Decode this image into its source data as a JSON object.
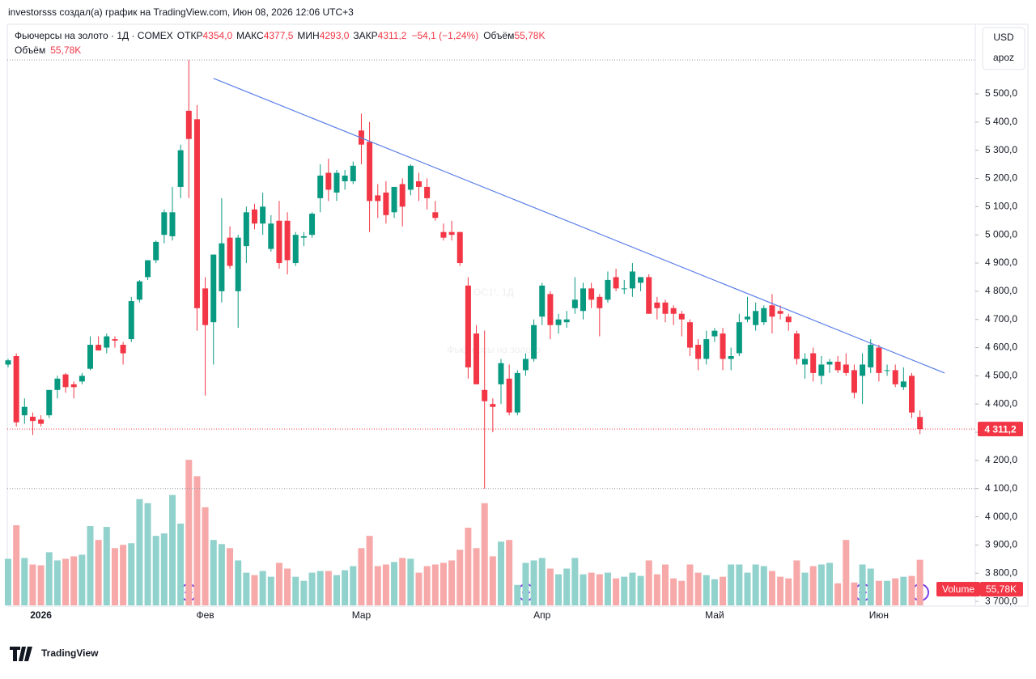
{
  "ui": {
    "credit": "investorsss создал(а) график на TradingView.com, Июн 08, 2026 12:06 UTC+3",
    "symbol": "Фьючерсы на золото · 1Д · COMEX",
    "fields": [
      {
        "label": "ОТКР",
        "value": "4354,0"
      },
      {
        "label": "МАКС",
        "value": "4377,5"
      },
      {
        "label": "МИН",
        "value": "4293,0"
      },
      {
        "label": "ЗАКР",
        "value": "4311,2"
      }
    ],
    "change": "−54,1 (−1,24%)",
    "volume_inline": {
      "label": "Объём",
      "value": "55,78K"
    },
    "volume_line": {
      "label": "Объём",
      "value": "55,78K"
    },
    "currency": "USD",
    "scale_mode": "apoz",
    "watermark": {
      "symbol": "GC1!, 1Д",
      "name": "Фьючерсы на золото"
    },
    "brand": "TradingView"
  },
  "chart_data": {
    "type": "candlestick",
    "categories": [
      null,
      null,
      null,
      null,
      "2026",
      null,
      null,
      null,
      null,
      null,
      null,
      null,
      null,
      null,
      null,
      null,
      null,
      null,
      null,
      null,
      null,
      null,
      null,
      null,
      "Фев",
      null,
      null,
      null,
      null,
      null,
      null,
      null,
      null,
      null,
      null,
      null,
      null,
      null,
      null,
      null,
      null,
      null,
      null,
      "Мар",
      null,
      null,
      null,
      null,
      null,
      null,
      null,
      null,
      null,
      null,
      null,
      null,
      null,
      null,
      null,
      null,
      null,
      null,
      null,
      null,
      null,
      "Апр",
      null,
      null,
      null,
      null,
      null,
      null,
      null,
      null,
      null,
      null,
      null,
      null,
      null,
      null,
      null,
      null,
      null,
      null,
      null,
      null,
      "Май",
      null,
      null,
      null,
      null,
      null,
      null,
      null,
      null,
      null,
      null,
      null,
      null,
      null,
      null,
      null,
      null,
      null,
      null,
      null,
      "Июн",
      null,
      null,
      null,
      null,
      null
    ],
    "open": [
      4540,
      4570,
      4360,
      4355,
      4345,
      4360,
      4450,
      4505,
      4470,
      4480,
      4525,
      4610,
      4600,
      4630,
      4610,
      4630,
      4770,
      4850,
      4910,
      5000,
      4995,
      5170,
      5440,
      5410,
      4810,
      4690,
      4800,
      4990,
      4800,
      4960,
      5090,
      5040,
      4950,
      5050,
      5050,
      4900,
      4990,
      5000,
      5130,
      5220,
      5150,
      5190,
      5190,
      5370,
      5330,
      5140,
      5150,
      5080,
      5180,
      5160,
      5190,
      5170,
      5080,
      5010,
      5010,
      5010,
      4820,
      4650,
      4450,
      4400,
      4470,
      4490,
      4370,
      4520,
      4560,
      4710,
      4790,
      4680,
      4690,
      4740,
      4730,
      4810,
      4780,
      4770,
      4850,
      4810,
      4810,
      4830,
      4850,
      4760,
      4760,
      4740,
      4720,
      4690,
      4610,
      4560,
      4640,
      4650,
      4560,
      4580,
      4700,
      4680,
      4690,
      4750,
      4730,
      4710,
      4650,
      4540,
      4580,
      4500,
      4540,
      4550,
      4540,
      4520,
      4500,
      4530,
      4600,
      4520,
      4520,
      4460,
      4500,
      4354
    ],
    "high": [
      4560,
      4580,
      4420,
      4370,
      4360,
      4440,
      4500,
      4510,
      4480,
      4510,
      4640,
      4640,
      4650,
      4640,
      4620,
      4780,
      4840,
      4910,
      4980,
      5090,
      5170,
      5320,
      5620,
      5460,
      4850,
      4930,
      5130,
      5030,
      5000,
      5100,
      5110,
      5150,
      5070,
      5120,
      5080,
      5010,
      5010,
      5080,
      5250,
      5270,
      5230,
      5230,
      5260,
      5430,
      5400,
      5180,
      5190,
      5170,
      5200,
      5250,
      5220,
      5200,
      5120,
      5040,
      5050,
      5010,
      4850,
      4680,
      4660,
      4420,
      4560,
      4540,
      4520,
      4580,
      4700,
      4830,
      4800,
      4720,
      4730,
      4850,
      4830,
      4830,
      4790,
      4870,
      4880,
      4840,
      4900,
      4850,
      4860,
      4780,
      4770,
      4750,
      4730,
      4700,
      4630,
      4660,
      4670,
      4670,
      4600,
      4720,
      4780,
      4760,
      4750,
      4790,
      4750,
      4720,
      4660,
      4580,
      4600,
      4570,
      4560,
      4570,
      4580,
      4540,
      4580,
      4630,
      4610,
      4540,
      4540,
      4530,
      4510,
      4377.5
    ],
    "low": [
      4530,
      4320,
      4330,
      4290,
      4320,
      4350,
      4420,
      4440,
      4420,
      4470,
      4520,
      4590,
      4580,
      4600,
      4540,
      4620,
      4760,
      4840,
      4900,
      4970,
      4980,
      5130,
      5130,
      4660,
      4430,
      4540,
      4760,
      4880,
      4670,
      4900,
      5020,
      5000,
      4940,
      4880,
      4860,
      4890,
      4960,
      4990,
      5080,
      5120,
      5120,
      5160,
      5180,
      5250,
      5010,
      5060,
      5040,
      5060,
      5030,
      5140,
      5120,
      5090,
      5050,
      4980,
      4980,
      4890,
      4490,
      4470,
      4100,
      4300,
      4400,
      4360,
      4360,
      4500,
      4550,
      4680,
      4630,
      4650,
      4670,
      4720,
      4700,
      4740,
      4640,
      4760,
      4800,
      4790,
      4780,
      4800,
      4720,
      4700,
      4690,
      4680,
      4640,
      4570,
      4520,
      4540,
      4620,
      4520,
      4520,
      4570,
      4690,
      4660,
      4680,
      4650,
      4700,
      4660,
      4540,
      4490,
      4480,
      4470,
      4510,
      4510,
      4500,
      4420,
      4400,
      4510,
      4480,
      4500,
      4460,
      4450,
      4350,
      4293
    ],
    "close": [
      4555,
      4335,
      4390,
      4340,
      4330,
      4450,
      4490,
      4460,
      4460,
      4500,
      4610,
      4590,
      4640,
      4625,
      4580,
      4765,
      4835,
      4910,
      4975,
      5080,
      5080,
      5300,
      5340,
      4740,
      4680,
      4930,
      4970,
      4890,
      4990,
      5080,
      5040,
      5100,
      5040,
      4900,
      4910,
      5000,
      4995,
      5075,
      5210,
      5160,
      5220,
      5210,
      5245,
      5320,
      5120,
      5120,
      5070,
      5170,
      5100,
      5245,
      5170,
      5130,
      5060,
      4990,
      5000,
      4900,
      4530,
      4470,
      4410,
      4390,
      4545,
      4370,
      4510,
      4560,
      4680,
      4820,
      4680,
      4700,
      4700,
      4770,
      4810,
      4770,
      4740,
      4840,
      4810,
      4810,
      4870,
      4850,
      4720,
      4740,
      4720,
      4720,
      4700,
      4600,
      4560,
      4630,
      4660,
      4560,
      4570,
      4690,
      4710,
      4730,
      4740,
      4710,
      4720,
      4690,
      4560,
      4560,
      4510,
      4540,
      4550,
      4520,
      4510,
      4440,
      4540,
      4610,
      4510,
      4520,
      4470,
      4480,
      4370,
      4311.2
    ],
    "volume": [
      57,
      98,
      58,
      50,
      49,
      65,
      55,
      57,
      60,
      62,
      97,
      80,
      96,
      70,
      74,
      76,
      130,
      125,
      85,
      88,
      135,
      100,
      178,
      158,
      120,
      80,
      75,
      70,
      55,
      40,
      37,
      42,
      35,
      52,
      45,
      35,
      30,
      40,
      42,
      42,
      37,
      43,
      48,
      70,
      85,
      48,
      50,
      53,
      58,
      57,
      40,
      48,
      50,
      52,
      55,
      68,
      95,
      70,
      125,
      60,
      78,
      80,
      25,
      52,
      55,
      58,
      45,
      38,
      45,
      58,
      38,
      40,
      38,
      40,
      33,
      35,
      40,
      36,
      55,
      38,
      50,
      33,
      30,
      50,
      40,
      37,
      32,
      35,
      50,
      50,
      40,
      50,
      48,
      42,
      35,
      33,
      55,
      40,
      48,
      50,
      52,
      27,
      80,
      28,
      50,
      45,
      30,
      30,
      33,
      35,
      36,
      55.78
    ],
    "volume_name": "Volume",
    "volume_value_label": "55,78K",
    "last_price_label": "4 311,2",
    "up_color": "#089981",
    "down_color": "#f23645",
    "volume_up_color": "#92d2cc",
    "volume_down_color": "#f7a9a9",
    "ylim": [
      3686,
      5741
    ],
    "yticks": [
      {
        "value": 3700,
        "label": "3 700,0"
      },
      {
        "value": 3800,
        "label": "3 800,0"
      },
      {
        "value": 3900,
        "label": "3 900,0"
      },
      {
        "value": 4000,
        "label": "4 000,0"
      },
      {
        "value": 4100,
        "label": "4 100,0"
      },
      {
        "value": 4200,
        "label": "4 200,0"
      },
      {
        "value": 4300,
        "label": "4 300,0"
      },
      {
        "value": 4400,
        "label": "4 400,0"
      },
      {
        "value": 4500,
        "label": "4 500,0"
      },
      {
        "value": 4600,
        "label": "4 600,0"
      },
      {
        "value": 4700,
        "label": "4 700,0"
      },
      {
        "value": 4800,
        "label": "4 800,0"
      },
      {
        "value": 4900,
        "label": "4 900,0"
      },
      {
        "value": 5000,
        "label": "5 000,0"
      },
      {
        "value": 5100,
        "label": "5 100,0"
      },
      {
        "value": 5200,
        "label": "5 200,0"
      },
      {
        "value": 5300,
        "label": "5 300,0"
      },
      {
        "value": 5400,
        "label": "5 400,0"
      },
      {
        "value": 5500,
        "label": "5 500,0"
      }
    ],
    "grid": false,
    "trend_line": {
      "x": [
        25,
        114
      ],
      "values": [
        5555,
        4510
      ],
      "color": "#5b7fe8"
    }
  }
}
